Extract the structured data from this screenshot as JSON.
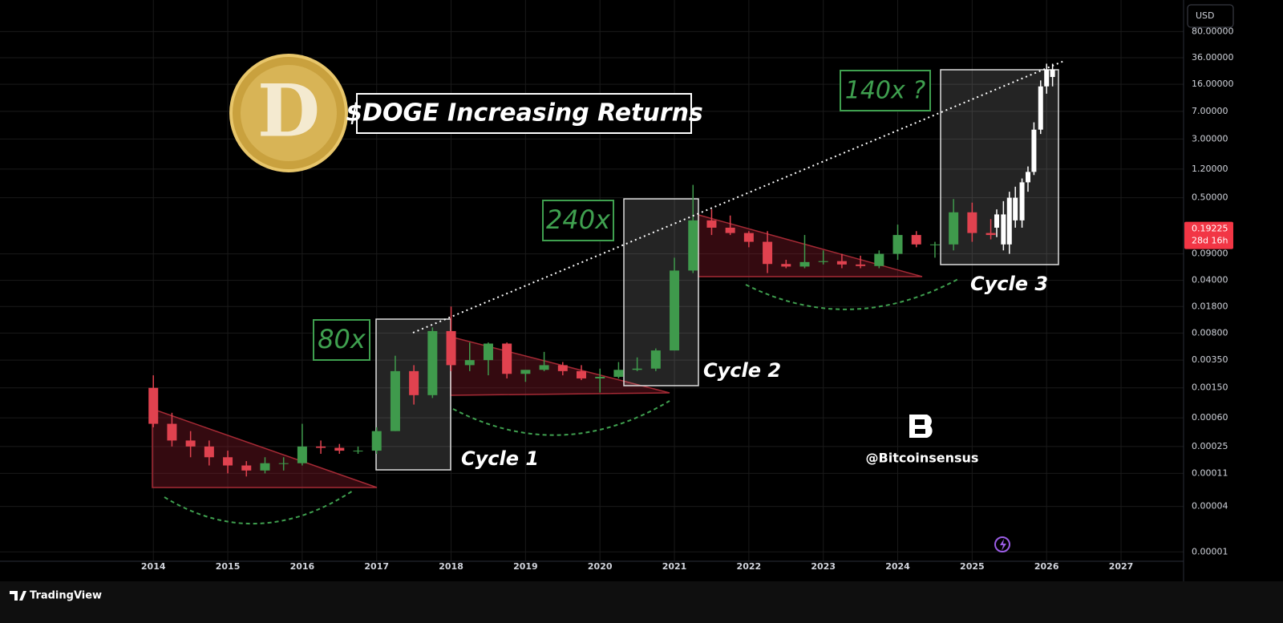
{
  "chart_data": {
    "type": "candlestick",
    "title": "$DOGE Increasing Returns",
    "currency": "USD",
    "log_scale": true,
    "grid": true,
    "xlim": [
      2011.94,
      2027.84
    ],
    "xticks": [
      2014,
      2015,
      2016,
      2017,
      2018,
      2019,
      2020,
      2021,
      2022,
      2023,
      2024,
      2025,
      2026,
      2027
    ],
    "ylim": [
      7.5e-06,
      210
    ],
    "yticks": [
      {
        "value": 80,
        "label": "80.00000"
      },
      {
        "value": 36,
        "label": "36.00000"
      },
      {
        "value": 16,
        "label": "16.00000"
      },
      {
        "value": 7,
        "label": "7.00000"
      },
      {
        "value": 3,
        "label": "3.00000"
      },
      {
        "value": 1.2,
        "label": "1.20000"
      },
      {
        "value": 0.5,
        "label": "0.50000"
      },
      {
        "value": 0.09,
        "label": "0.09000"
      },
      {
        "value": 0.04,
        "label": "0.04000"
      },
      {
        "value": 0.018,
        "label": "0.01800"
      },
      {
        "value": 0.008,
        "label": "0.00800"
      },
      {
        "value": 0.0035,
        "label": "0.00350"
      },
      {
        "value": 0.0015,
        "label": "0.00150"
      },
      {
        "value": 0.0006,
        "label": "0.00060"
      },
      {
        "value": 0.00025,
        "label": "0.00025"
      },
      {
        "value": 0.00011,
        "label": "0.00011"
      },
      {
        "value": 4e-05,
        "label": "0.00004"
      },
      {
        "value": 1e-05,
        "label": "0.00001"
      }
    ],
    "up_color": "#3f9a4c",
    "down_color": "#e0424f",
    "series": [
      {
        "x": [
          2014,
          2014.25,
          2014.5,
          2014.75,
          2015,
          2015.25,
          2015.5,
          2015.75,
          2016,
          2016.25,
          2016.5,
          2016.75,
          2017,
          2017.25,
          2017.5,
          2017.75,
          2018,
          2018.25,
          2018.5,
          2018.75,
          2019,
          2019.25,
          2019.5,
          2019.75,
          2020,
          2020.25,
          2020.5,
          2020.75,
          2021,
          2021.25,
          2021.5,
          2021.75,
          2022,
          2022.25,
          2022.5,
          2022.75,
          2023,
          2023.25,
          2023.5,
          2023.75,
          2024,
          2024.25,
          2024.5,
          2024.75,
          2025,
          2025.25
        ],
        "open": [
          0.0015,
          0.0005,
          0.0003,
          0.00025,
          0.00018,
          0.00014,
          0.00012,
          0.00015,
          0.00015,
          0.00025,
          0.00024,
          0.00022,
          0.00022,
          0.0004,
          0.0025,
          0.0012,
          0.0085,
          0.003,
          0.0035,
          0.0058,
          0.0023,
          0.0026,
          0.003,
          0.0025,
          0.002,
          0.0021,
          0.0026,
          0.0027,
          0.0047,
          0.054,
          0.25,
          0.2,
          0.17,
          0.13,
          0.066,
          0.061,
          0.07,
          0.072,
          0.065,
          0.062,
          0.09,
          0.16,
          0.12,
          0.12,
          0.32,
          0.17
        ],
        "high": [
          0.0022,
          0.0007,
          0.0004,
          0.0003,
          0.00022,
          0.00016,
          0.00018,
          0.00018,
          0.0005,
          0.0003,
          0.00027,
          0.00025,
          0.00045,
          0.004,
          0.003,
          0.0095,
          0.018,
          0.006,
          0.006,
          0.006,
          0.0025,
          0.0045,
          0.0033,
          0.003,
          0.0027,
          0.0033,
          0.0038,
          0.005,
          0.08,
          0.74,
          0.35,
          0.29,
          0.18,
          0.18,
          0.075,
          0.16,
          0.1,
          0.09,
          0.085,
          0.1,
          0.22,
          0.18,
          0.13,
          0.48,
          0.43,
          0.26
        ],
        "low": [
          0.00045,
          0.00025,
          0.00018,
          0.00014,
          0.00011,
          0.0001,
          0.00011,
          0.00012,
          0.00014,
          0.0002,
          0.0002,
          0.0002,
          0.0002,
          0.0004,
          0.0009,
          0.0011,
          0.0025,
          0.0025,
          0.0022,
          0.002,
          0.0018,
          0.0025,
          0.0022,
          0.0019,
          0.0013,
          0.002,
          0.0025,
          0.0025,
          0.0047,
          0.05,
          0.16,
          0.16,
          0.11,
          0.05,
          0.058,
          0.058,
          0.065,
          0.058,
          0.058,
          0.058,
          0.075,
          0.11,
          0.08,
          0.1,
          0.13,
          0.14
        ],
        "close": [
          0.0005,
          0.0003,
          0.00025,
          0.00018,
          0.00014,
          0.00012,
          0.00015,
          0.00015,
          0.00025,
          0.00024,
          0.00022,
          0.00022,
          0.0004,
          0.0025,
          0.0012,
          0.0085,
          0.003,
          0.0035,
          0.0058,
          0.0023,
          0.0026,
          0.003,
          0.0025,
          0.002,
          0.0021,
          0.0026,
          0.0027,
          0.0047,
          0.054,
          0.25,
          0.2,
          0.17,
          0.13,
          0.066,
          0.061,
          0.07,
          0.072,
          0.065,
          0.062,
          0.09,
          0.16,
          0.12,
          0.12,
          0.32,
          0.17,
          0.16
        ]
      },
      {
        "color": "#ffffff",
        "x": [
          2025.33,
          2025.42,
          2025.5,
          2025.58,
          2025.67,
          2025.75,
          2025.83,
          2025.92,
          2026,
          2026.08
        ],
        "open": [
          0.2,
          0.3,
          0.12,
          0.5,
          0.25,
          0.8,
          1.1,
          4,
          15,
          25
        ],
        "high": [
          0.35,
          0.45,
          0.6,
          0.7,
          0.9,
          1.3,
          5,
          18,
          30,
          30
        ],
        "low": [
          0.15,
          0.1,
          0.09,
          0.2,
          0.2,
          0.6,
          1,
          3.5,
          12,
          15
        ],
        "close": [
          0.3,
          0.12,
          0.5,
          0.25,
          0.8,
          1.1,
          4,
          15,
          25,
          20
        ]
      }
    ],
    "multiples": [
      "80x",
      "240x",
      "140x ?"
    ],
    "cycles": [
      "Cycle 1",
      "Cycle 2",
      "Cycle 3"
    ],
    "watermark": "@Bitcoinsensus",
    "last_price": 0.19225,
    "countdown": "28d 16h",
    "brand": "TradingView"
  }
}
